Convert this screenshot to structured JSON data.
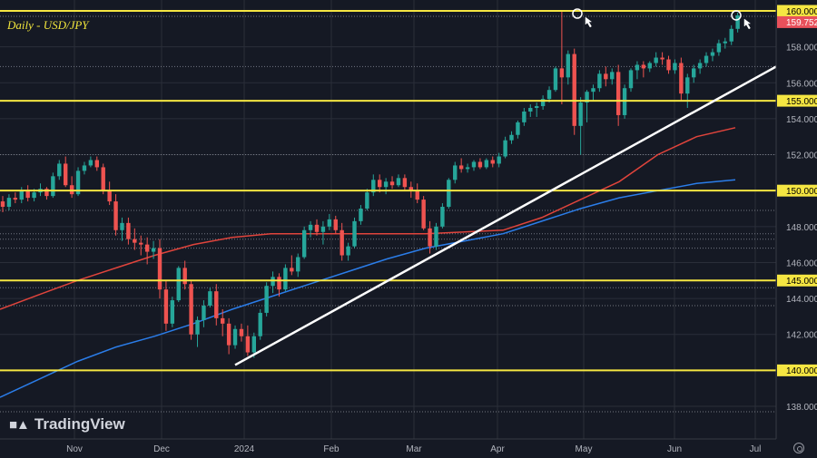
{
  "title": "Daily - USD/JPY",
  "watermark": "TradingView",
  "colors": {
    "background": "#151924",
    "grid": "#2a2e39",
    "up": "#26a69a",
    "down": "#ef5350",
    "level": "#f5e642",
    "ma_fast": "#e0443c",
    "ma_slow": "#2b7de9",
    "trendline": "#ffffff",
    "price_badge": "#e8505b",
    "axis_text": "#b2b5be"
  },
  "chart_data": {
    "type": "candlestick",
    "title": "Daily - USD/JPY",
    "ylim": [
      137,
      160.4
    ],
    "y_ticks": [
      138,
      140,
      142,
      144,
      146,
      148,
      150,
      152,
      154,
      156,
      158,
      160
    ],
    "y_tick_labels": [
      "138.000",
      "140.000",
      "142.000",
      "144.000",
      "146.000",
      "148.000",
      "150.000",
      "152.000",
      "154.000",
      "156.000",
      "158.000",
      "160.000"
    ],
    "x_tick_labels": [
      "Nov",
      "Dec",
      "2024",
      "Feb",
      "Mar",
      "Apr",
      "May",
      "Jun",
      "Jul"
    ],
    "horizontal_levels": [
      {
        "value": 160.0,
        "label": "160.000"
      },
      {
        "value": 155.0,
        "label": "155.000"
      },
      {
        "value": 150.0,
        "label": "150.000"
      },
      {
        "value": 145.0,
        "label": "145.000"
      },
      {
        "value": 140.0,
        "label": "140.000"
      }
    ],
    "last_price": {
      "value": 159.752,
      "label": "159.752"
    },
    "dotted_levels": [
      159.7,
      156.9,
      152.0,
      148.9,
      147.6,
      147.3,
      146.8,
      144.6,
      143.6,
      137.7
    ],
    "ma_fast": {
      "name": "",
      "values": [
        143.4,
        144.2,
        145.0,
        145.7,
        146.4,
        147.0,
        147.4,
        147.6,
        147.6,
        147.6,
        147.6,
        147.6,
        147.7,
        147.8,
        148.5,
        149.5,
        150.5,
        152.0,
        153.0,
        153.5
      ]
    },
    "ma_slow": {
      "name": "",
      "values": [
        138.5,
        139.5,
        140.5,
        141.3,
        141.9,
        142.6,
        143.4,
        144.1,
        144.8,
        145.5,
        146.2,
        146.8,
        147.2,
        147.6,
        148.3,
        149.0,
        149.6,
        150.0,
        150.4,
        150.6
      ]
    },
    "trendline": {
      "from": {
        "x": "2023-12-28",
        "y": 140.3
      },
      "to": {
        "x": "2024-07-01",
        "y": 156.9
      }
    },
    "annotations": [
      {
        "type": "circle-arrow",
        "x": "2024-04-29",
        "y": 160.0
      },
      {
        "type": "circle-arrow",
        "x": "2024-06-26",
        "y": 159.9
      }
    ],
    "candles": [
      [
        149.4,
        149.7,
        148.8,
        149.1
      ],
      [
        149.1,
        149.8,
        148.9,
        149.6
      ],
      [
        149.6,
        149.9,
        149.3,
        149.5
      ],
      [
        149.5,
        150.2,
        149.3,
        150.0
      ],
      [
        150.0,
        150.3,
        149.4,
        149.6
      ],
      [
        149.6,
        150.1,
        149.4,
        149.9
      ],
      [
        149.9,
        150.4,
        149.7,
        150.1
      ],
      [
        150.1,
        150.2,
        149.5,
        149.7
      ],
      [
        149.7,
        151.0,
        149.6,
        150.8
      ],
      [
        150.8,
        151.7,
        150.6,
        151.5
      ],
      [
        151.5,
        151.9,
        150.2,
        150.3
      ],
      [
        150.3,
        150.8,
        149.6,
        149.8
      ],
      [
        149.8,
        151.3,
        149.7,
        151.1
      ],
      [
        151.1,
        151.6,
        150.9,
        151.4
      ],
      [
        151.4,
        151.9,
        151.3,
        151.7
      ],
      [
        151.7,
        151.9,
        151.1,
        151.3
      ],
      [
        151.3,
        151.5,
        149.8,
        150.0
      ],
      [
        150.0,
        150.5,
        149.2,
        149.4
      ],
      [
        149.4,
        149.8,
        147.5,
        147.8
      ],
      [
        147.8,
        148.5,
        147.2,
        148.2
      ],
      [
        148.2,
        148.5,
        147.0,
        147.3
      ],
      [
        147.3,
        147.9,
        146.7,
        147.1
      ],
      [
        147.1,
        147.5,
        146.4,
        147.0
      ],
      [
        147.0,
        147.4,
        145.9,
        146.6
      ],
      [
        146.6,
        147.2,
        146.2,
        146.8
      ],
      [
        146.8,
        147.3,
        144.0,
        144.5
      ],
      [
        144.5,
        145.0,
        142.2,
        142.6
      ],
      [
        142.6,
        144.1,
        142.4,
        143.9
      ],
      [
        143.9,
        145.8,
        143.8,
        145.7
      ],
      [
        145.7,
        146.1,
        144.5,
        144.8
      ],
      [
        144.8,
        145.0,
        141.7,
        142.0
      ],
      [
        142.0,
        143.0,
        141.3,
        142.8
      ],
      [
        142.8,
        143.9,
        142.4,
        143.6
      ],
      [
        143.6,
        144.6,
        143.5,
        144.4
      ],
      [
        144.4,
        144.8,
        142.5,
        142.9
      ],
      [
        142.9,
        143.4,
        141.9,
        142.6
      ],
      [
        142.6,
        142.9,
        140.9,
        141.4
      ],
      [
        141.4,
        142.5,
        141.2,
        142.3
      ],
      [
        142.3,
        142.6,
        141.6,
        141.9
      ],
      [
        141.9,
        142.5,
        140.8,
        141.0
      ],
      [
        141.0,
        142.1,
        140.7,
        141.9
      ],
      [
        141.9,
        143.4,
        141.7,
        143.2
      ],
      [
        143.2,
        144.9,
        143.0,
        144.7
      ],
      [
        144.7,
        145.5,
        144.3,
        145.2
      ],
      [
        145.2,
        145.4,
        144.1,
        144.5
      ],
      [
        144.5,
        145.9,
        144.4,
        145.7
      ],
      [
        145.7,
        146.4,
        145.3,
        145.5
      ],
      [
        145.5,
        146.5,
        145.2,
        146.3
      ],
      [
        146.3,
        148.0,
        146.2,
        147.8
      ],
      [
        147.8,
        148.3,
        147.4,
        148.1
      ],
      [
        148.1,
        148.4,
        147.5,
        147.7
      ],
      [
        147.7,
        148.3,
        147.0,
        148.0
      ],
      [
        148.0,
        148.7,
        147.8,
        148.4
      ],
      [
        148.4,
        148.6,
        147.6,
        147.8
      ],
      [
        147.8,
        148.2,
        146.1,
        146.4
      ],
      [
        146.4,
        147.1,
        146.1,
        146.9
      ],
      [
        146.9,
        148.5,
        146.8,
        148.3
      ],
      [
        148.3,
        149.2,
        148.1,
        149.0
      ],
      [
        149.0,
        150.1,
        148.9,
        149.9
      ],
      [
        149.9,
        150.9,
        149.7,
        150.6
      ],
      [
        150.6,
        150.9,
        149.9,
        150.2
      ],
      [
        150.2,
        150.7,
        149.8,
        150.5
      ],
      [
        150.5,
        150.8,
        150.1,
        150.3
      ],
      [
        150.3,
        150.9,
        150.2,
        150.7
      ],
      [
        150.7,
        150.9,
        150.0,
        150.2
      ],
      [
        150.2,
        150.5,
        149.6,
        150.0
      ],
      [
        150.0,
        150.4,
        149.3,
        149.5
      ],
      [
        149.5,
        149.7,
        147.8,
        147.9
      ],
      [
        147.9,
        148.3,
        146.5,
        146.9
      ],
      [
        146.9,
        148.2,
        146.7,
        148.0
      ],
      [
        148.0,
        149.3,
        147.9,
        149.1
      ],
      [
        149.1,
        150.7,
        149.0,
        150.6
      ],
      [
        150.6,
        151.6,
        150.4,
        151.4
      ],
      [
        151.4,
        151.8,
        151.0,
        151.2
      ],
      [
        151.2,
        151.5,
        151.0,
        151.3
      ],
      [
        151.3,
        151.7,
        151.1,
        151.6
      ],
      [
        151.6,
        151.8,
        151.2,
        151.3
      ],
      [
        151.3,
        151.8,
        151.2,
        151.7
      ],
      [
        151.7,
        151.9,
        151.3,
        151.5
      ],
      [
        151.5,
        152.1,
        151.3,
        151.9
      ],
      [
        151.9,
        153.0,
        151.8,
        152.8
      ],
      [
        152.8,
        153.3,
        152.6,
        153.1
      ],
      [
        153.1,
        153.9,
        152.9,
        153.8
      ],
      [
        153.8,
        154.6,
        153.6,
        154.4
      ],
      [
        154.4,
        154.8,
        154.1,
        154.6
      ],
      [
        154.6,
        154.9,
        154.1,
        154.7
      ],
      [
        154.7,
        155.3,
        154.5,
        155.1
      ],
      [
        155.1,
        155.8,
        154.9,
        155.6
      ],
      [
        155.6,
        156.9,
        155.5,
        156.8
      ],
      [
        156.8,
        160.0,
        154.8,
        156.3
      ],
      [
        156.3,
        157.8,
        155.9,
        157.6
      ],
      [
        157.6,
        157.9,
        153.1,
        153.6
      ],
      [
        153.6,
        155.2,
        152.0,
        154.9
      ],
      [
        154.9,
        155.6,
        153.8,
        155.5
      ],
      [
        155.5,
        155.9,
        155.0,
        155.7
      ],
      [
        155.7,
        156.7,
        155.5,
        156.5
      ],
      [
        156.5,
        156.9,
        155.8,
        156.2
      ],
      [
        156.2,
        156.8,
        155.9,
        156.6
      ],
      [
        156.6,
        157.0,
        153.6,
        154.2
      ],
      [
        154.2,
        155.9,
        154.0,
        155.7
      ],
      [
        155.7,
        156.8,
        155.5,
        156.7
      ],
      [
        156.7,
        157.2,
        156.2,
        157.0
      ],
      [
        157.0,
        157.2,
        156.3,
        156.8
      ],
      [
        156.8,
        157.2,
        156.6,
        157.1
      ],
      [
        157.1,
        157.7,
        156.9,
        157.4
      ],
      [
        157.4,
        157.7,
        157.0,
        157.3
      ],
      [
        157.3,
        157.5,
        156.5,
        156.7
      ],
      [
        156.7,
        157.3,
        156.5,
        157.1
      ],
      [
        157.1,
        157.4,
        155.0,
        155.4
      ],
      [
        155.4,
        156.5,
        154.6,
        156.3
      ],
      [
        156.3,
        157.0,
        156.0,
        156.8
      ],
      [
        156.8,
        157.3,
        156.5,
        157.1
      ],
      [
        157.1,
        157.7,
        156.9,
        157.5
      ],
      [
        157.5,
        157.9,
        157.2,
        157.7
      ],
      [
        157.7,
        158.4,
        157.5,
        158.2
      ],
      [
        158.2,
        158.5,
        157.9,
        158.3
      ],
      [
        158.3,
        159.2,
        158.1,
        159.0
      ],
      [
        159.0,
        159.9,
        158.8,
        159.75
      ]
    ]
  }
}
